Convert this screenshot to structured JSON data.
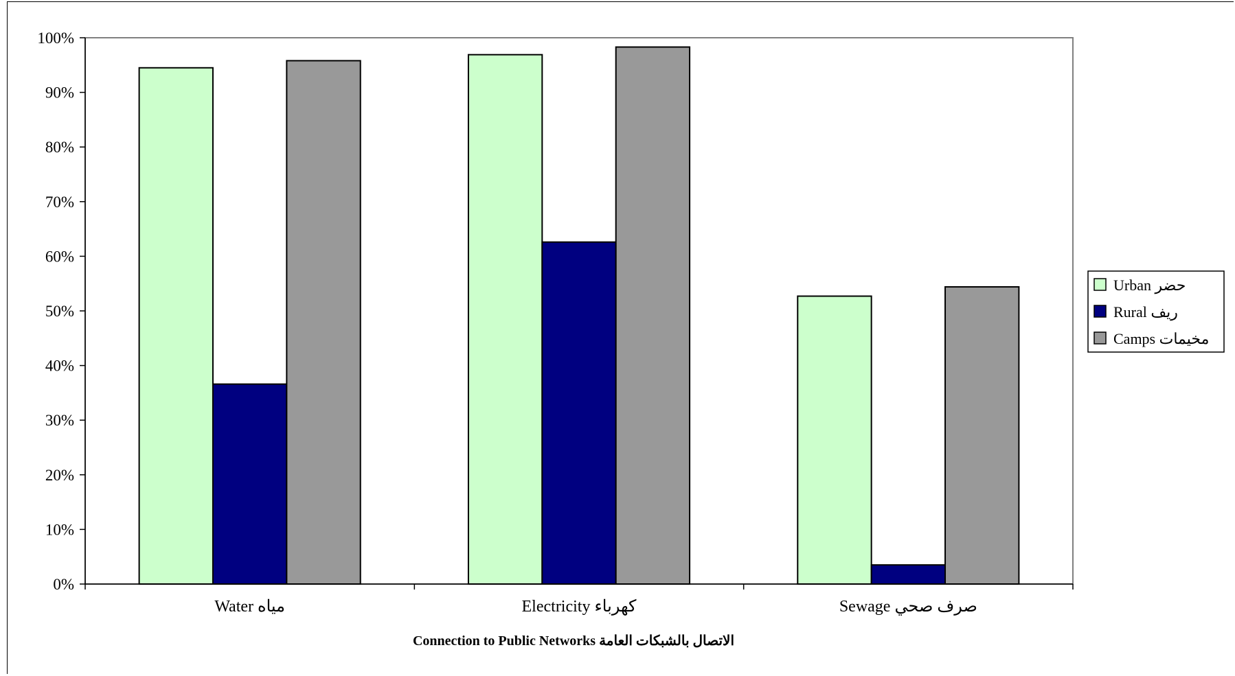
{
  "chart_data": {
    "type": "bar",
    "title": "",
    "xlabel": "Connection to Public Networks  الاتصال بالشبكات العامة",
    "ylabel": "",
    "categories": [
      "Water  مياه",
      "Electricity  كهرباء",
      "Sewage  صرف صحي"
    ],
    "series": [
      {
        "name": "Urban  حضر",
        "color": "#ccffcc",
        "values": [
          94.5,
          96.9,
          52.7
        ]
      },
      {
        "name": "Rural  ريف",
        "color": "#000080",
        "values": [
          36.6,
          62.6,
          3.5
        ]
      },
      {
        "name": "Camps  مخيمات",
        "color": "#999999",
        "values": [
          95.8,
          98.3,
          54.4
        ]
      }
    ],
    "ylim": [
      0,
      100
    ],
    "yticks": [
      "0%",
      "10%",
      "20%",
      "30%",
      "40%",
      "50%",
      "60%",
      "70%",
      "80%",
      "90%",
      "100%"
    ],
    "grid": false,
    "legend": "right",
    "plot_border_color": "#808080"
  }
}
